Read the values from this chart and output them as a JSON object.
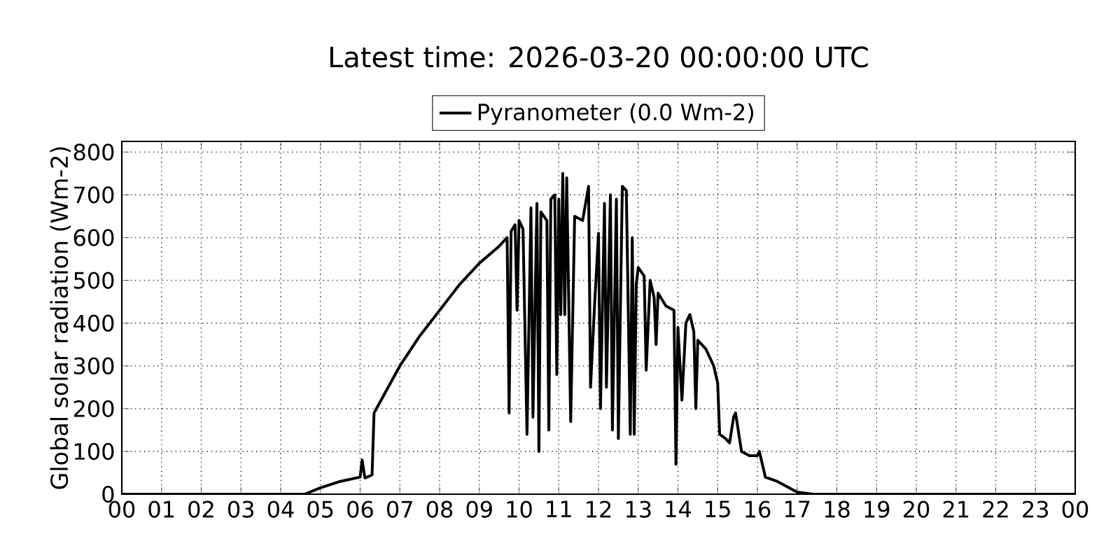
{
  "chart_data": {
    "type": "line",
    "title": "Latest time: 2026-03-20 00:00:00 UTC",
    "ylabel": "Global solar radiation (Wm-2)",
    "x": [
      0,
      4.6,
      5.0,
      5.5,
      6.0,
      6.05,
      6.12,
      6.3,
      6.35,
      7,
      7.5,
      8,
      8.5,
      9,
      9.5,
      9.7,
      9.75,
      9.8,
      9.9,
      9.95,
      10.0,
      10.1,
      10.2,
      10.3,
      10.35,
      10.45,
      10.5,
      10.55,
      10.7,
      10.75,
      10.8,
      10.9,
      10.95,
      11.0,
      11.05,
      11.1,
      11.15,
      11.2,
      11.3,
      11.4,
      11.6,
      11.75,
      11.8,
      11.9,
      12.0,
      12.05,
      12.15,
      12.2,
      12.3,
      12.35,
      12.45,
      12.5,
      12.6,
      12.7,
      12.8,
      12.85,
      12.9,
      12.95,
      13.0,
      13.15,
      13.2,
      13.3,
      13.4,
      13.45,
      13.5,
      13.7,
      13.9,
      13.95,
      14.0,
      14.1,
      14.2,
      14.3,
      14.4,
      14.45,
      14.5,
      14.7,
      14.9,
      15.0,
      15.05,
      15.2,
      15.3,
      15.4,
      15.45,
      15.6,
      15.8,
      16.0,
      16.05,
      16.2,
      16.5,
      17.0,
      17.4,
      24
    ],
    "series": [
      {
        "name": "Pyranometer (0.0 Wm-2)",
        "color": "#000000",
        "values": [
          0,
          0,
          15,
          30,
          40,
          80,
          38,
          45,
          190,
          300,
          370,
          430,
          490,
          540,
          580,
          600,
          190,
          615,
          630,
          430,
          640,
          620,
          140,
          670,
          180,
          680,
          100,
          660,
          640,
          150,
          690,
          700,
          280,
          690,
          420,
          750,
          420,
          740,
          170,
          650,
          640,
          720,
          250,
          440,
          610,
          200,
          680,
          250,
          700,
          150,
          690,
          130,
          720,
          710,
          140,
          600,
          140,
          490,
          530,
          510,
          290,
          500,
          460,
          350,
          470,
          440,
          430,
          70,
          390,
          220,
          400,
          420,
          380,
          200,
          360,
          340,
          300,
          260,
          140,
          130,
          120,
          180,
          190,
          100,
          90,
          90,
          100,
          40,
          30,
          5,
          0,
          0
        ]
      }
    ],
    "xlim": [
      0,
      24
    ],
    "xticks": [
      {
        "value": 0,
        "label": "00"
      },
      {
        "value": 1,
        "label": "01"
      },
      {
        "value": 2,
        "label": "02"
      },
      {
        "value": 3,
        "label": "03"
      },
      {
        "value": 4,
        "label": "04"
      },
      {
        "value": 5,
        "label": "05"
      },
      {
        "value": 6,
        "label": "06"
      },
      {
        "value": 7,
        "label": "07"
      },
      {
        "value": 8,
        "label": "08"
      },
      {
        "value": 9,
        "label": "09"
      },
      {
        "value": 10,
        "label": "10"
      },
      {
        "value": 11,
        "label": "11"
      },
      {
        "value": 12,
        "label": "12"
      },
      {
        "value": 13,
        "label": "13"
      },
      {
        "value": 14,
        "label": "14"
      },
      {
        "value": 15,
        "label": "15"
      },
      {
        "value": 16,
        "label": "16"
      },
      {
        "value": 17,
        "label": "17"
      },
      {
        "value": 18,
        "label": "18"
      },
      {
        "value": 19,
        "label": "19"
      },
      {
        "value": 20,
        "label": "20"
      },
      {
        "value": 21,
        "label": "21"
      },
      {
        "value": 22,
        "label": "22"
      },
      {
        "value": 23,
        "label": "23"
      },
      {
        "value": 24,
        "label": "00"
      }
    ],
    "ylim": [
      0,
      825
    ],
    "yticks": [
      0,
      100,
      200,
      300,
      400,
      500,
      600,
      700,
      800
    ],
    "grid": true,
    "legend": "top",
    "marker": "none",
    "line_style": "solid"
  }
}
